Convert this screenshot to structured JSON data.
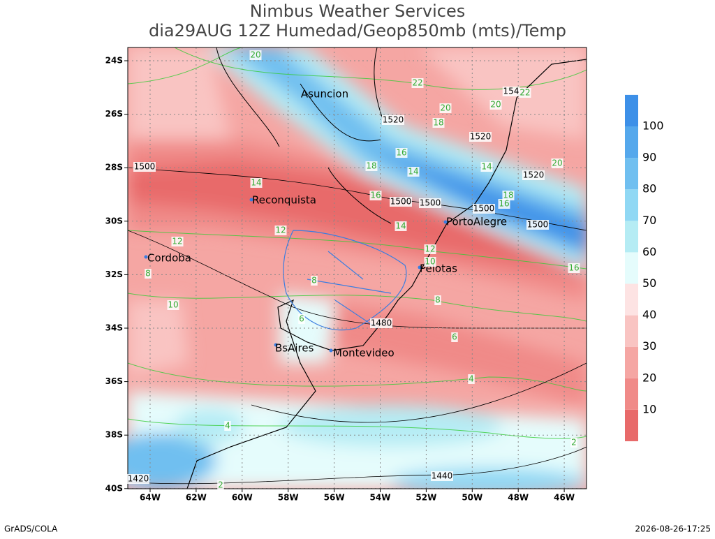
{
  "title": "Nimbus Weather Services",
  "subtitle": "dia29AUG 12Z Humedad/Geop850mb (mts)/Temp",
  "lat_ticks": [
    "24S",
    "26S",
    "28S",
    "30S",
    "32S",
    "34S",
    "36S",
    "38S",
    "40S"
  ],
  "lon_ticks": [
    "64W",
    "62W",
    "60W",
    "58W",
    "56W",
    "54W",
    "52W",
    "50W",
    "48W",
    "46W"
  ],
  "colorbar": [
    10,
    20,
    30,
    40,
    50,
    60,
    70,
    80,
    90,
    100
  ],
  "cities": [
    "Asuncion",
    "Reconquista",
    "PortoAlegre",
    "Cordoba",
    "Pelotas",
    "BsAires",
    "Montevideo"
  ],
  "contour_labels": [
    "20",
    "22",
    "1520",
    "18",
    "20",
    "1520",
    "154",
    "22",
    "20",
    "16",
    "14",
    "18",
    "14",
    "1520",
    "20",
    "1500",
    "14",
    "16",
    "1500",
    "1500",
    "1500",
    "18",
    "16",
    "1500",
    "14",
    "12",
    "12",
    "12",
    "10",
    "16",
    "10",
    "8",
    "8",
    "8",
    "6",
    "1480",
    "6",
    "4",
    "4",
    "2",
    "1440",
    "1420",
    "2"
  ],
  "footer": {
    "left": "GrADS/COLA",
    "right": "2026-08-26-17:25"
  }
}
